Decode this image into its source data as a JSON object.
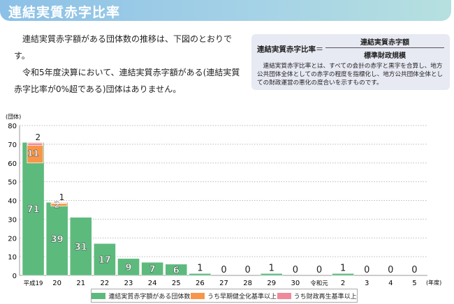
{
  "header": {
    "title": "連結実質赤字比率"
  },
  "intro": {
    "p1": "連結実質赤字額がある団体数の推移は、下図のとおりです。",
    "p2": "令和5年度決算において、連結実質赤字額がある(連結実質赤字比率が0%超である)団体はありません。"
  },
  "formula": {
    "left": "連結実質赤字比率",
    "eq": "＝",
    "numerator": "連結実質赤字額",
    "denominator": "標準財政規模",
    "description": "連結実質赤字比率とは、すべての会計の赤字と黒字を合算し、地方公共団体全体としての赤字の程度を指標化し、地方公共団体全体としての財政運営の悪化の度合いを示すものです。"
  },
  "chart_data": {
    "type": "bar",
    "ylabel": "(団体)",
    "xlabel": "(年度)",
    "ylim": [
      0,
      80
    ],
    "yticks": [
      0,
      10,
      20,
      30,
      40,
      50,
      60,
      70,
      80
    ],
    "grid": true,
    "legend_position": "bottom",
    "categories": [
      "平成19",
      "20",
      "21",
      "22",
      "23",
      "24",
      "25",
      "26",
      "27",
      "28",
      "29",
      "30",
      "令和元",
      "2",
      "3",
      "4",
      "5"
    ],
    "series": [
      {
        "name": "連結実質赤字額がある団体数",
        "color": "#5dba7d",
        "values": [
          71,
          39,
          31,
          17,
          9,
          7,
          6,
          1,
          0,
          0,
          1,
          0,
          0,
          1,
          0,
          0,
          0
        ]
      },
      {
        "name": "うち早期健全化基準以上",
        "color": "#f7964a",
        "values": [
          11,
          2,
          0,
          0,
          0,
          0,
          0,
          0,
          0,
          0,
          0,
          0,
          0,
          0,
          0,
          0,
          0
        ]
      },
      {
        "name": "うち財政再生基準以上",
        "color": "#f08a9a",
        "values": [
          2,
          1,
          0,
          0,
          0,
          0,
          0,
          0,
          0,
          0,
          0,
          0,
          0,
          0,
          0,
          0,
          0
        ]
      }
    ]
  }
}
